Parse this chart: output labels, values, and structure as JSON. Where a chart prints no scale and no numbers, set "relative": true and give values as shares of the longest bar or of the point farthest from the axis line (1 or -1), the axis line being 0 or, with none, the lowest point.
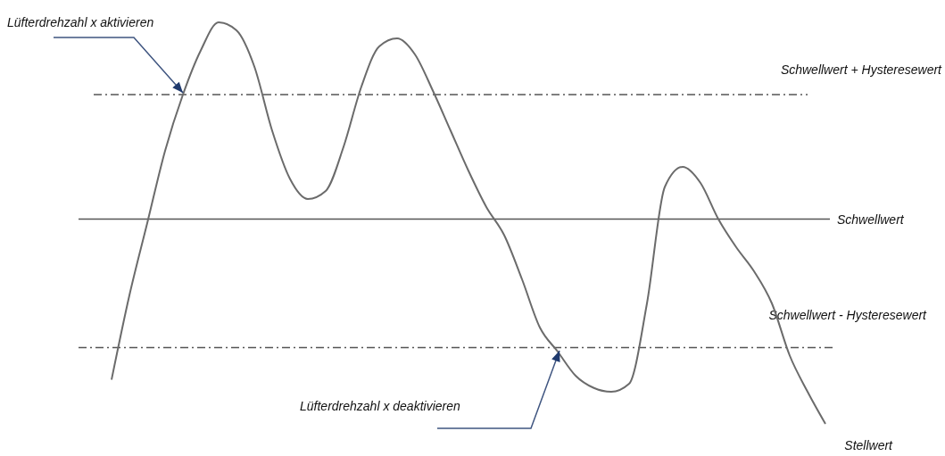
{
  "chart_data": {
    "type": "line",
    "relative": true,
    "categories": [
      null,
      null,
      null,
      null,
      null,
      null,
      null,
      null,
      null,
      null,
      null,
      null,
      null,
      null,
      null,
      null,
      null,
      null,
      null,
      null,
      null,
      null,
      null,
      null,
      null,
      null,
      null,
      null,
      null,
      null,
      null,
      null,
      null,
      null,
      null,
      null,
      null,
      null,
      null,
      null,
      null
    ],
    "series": [
      {
        "name": "Stellwert",
        "color": "#6b6b6b",
        "values": [
          0.11,
          0.32,
          0.5,
          0.68,
          0.82,
          0.93,
          1,
          0.98,
          0.89,
          0.73,
          0.61,
          0.56,
          0.58,
          0.69,
          0.84,
          0.94,
          0.96,
          0.92,
          0.83,
          0.73,
          0.63,
          0.54,
          0.47,
          0.36,
          0.24,
          0.18,
          0.12,
          0.09,
          0.08,
          0.1,
          0.3,
          0.59,
          0.64,
          0.6,
          0.51,
          0.44,
          0.38,
          0.3,
          0.17,
          0.08,
          0
        ]
      }
    ],
    "ref_lines": [
      {
        "axis": "y",
        "value": 0.82,
        "label": "Schwellwert + Hysteresewert",
        "color": "#555555",
        "line_style": "dashdot"
      },
      {
        "axis": "y",
        "value": 0.51,
        "label": "Schwellwert",
        "color": "#555555",
        "line_style": "solid"
      },
      {
        "axis": "y",
        "value": 0.19,
        "label": "Schwellwert - Hysteresewert",
        "color": "#555555",
        "line_style": "dashdot"
      }
    ],
    "annotations": [
      "Lüfterdrehzahl x aktivieren",
      "Lüfterdrehzahl x deaktivieren"
    ],
    "marker": "none",
    "line_style": "solid"
  }
}
